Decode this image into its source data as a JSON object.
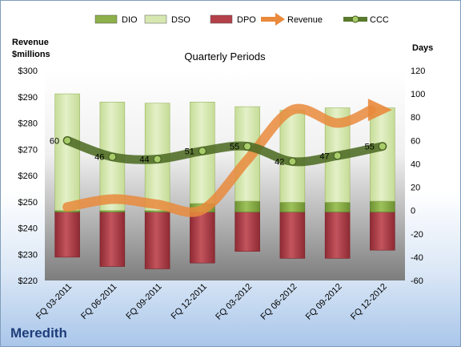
{
  "chart_data": {
    "type": "bar",
    "title": "Quarterly Periods",
    "company": "Meredith",
    "left_axis": {
      "title_line1": "Revenue",
      "title_line2": "$millions",
      "min": 220,
      "max": 300,
      "step": 10,
      "format": "$"
    },
    "right_axis": {
      "title": "Days",
      "min": -60,
      "max": 120,
      "step": 20
    },
    "categories": [
      "FQ 03-2011",
      "FQ 06-2011",
      "FQ 09-2011",
      "FQ 12-2011",
      "FQ 03-2012",
      "FQ 06-2012",
      "FQ 09-2012",
      "FQ 12-2012"
    ],
    "legend": [
      {
        "name": "DIO",
        "type": "bar",
        "color": "#8db04a"
      },
      {
        "name": "DSO",
        "type": "bar",
        "color": "#d6e8b0"
      },
      {
        "name": "DPO",
        "type": "bar",
        "color": "#b4404a"
      },
      {
        "name": "Revenue",
        "type": "arrow",
        "color": "#e98a3c"
      },
      {
        "name": "CCC",
        "type": "line",
        "color": "#5a7a2e"
      }
    ],
    "series": [
      {
        "name": "DIO",
        "axis": "days",
        "values": [
          -1,
          -1,
          -1,
          6,
          8,
          7,
          7,
          8
        ]
      },
      {
        "name": "DSO",
        "axis": "days",
        "values": [
          100,
          93,
          92,
          87,
          81,
          79,
          81,
          80
        ]
      },
      {
        "name": "DPO",
        "axis": "days",
        "values": [
          -40,
          -48,
          -50,
          -45,
          -35,
          -41,
          -41,
          -34
        ]
      },
      {
        "name": "Revenue",
        "axis": "revenue",
        "values": [
          248,
          251,
          249,
          247,
          266,
          285,
          280,
          285
        ]
      },
      {
        "name": "CCC",
        "axis": "days",
        "values": [
          60,
          46,
          44,
          51,
          55,
          42,
          47,
          55
        ]
      }
    ],
    "ccc_labels": [
      "60",
      "46",
      "44",
      "51",
      "55",
      "42",
      "47",
      "55"
    ]
  }
}
